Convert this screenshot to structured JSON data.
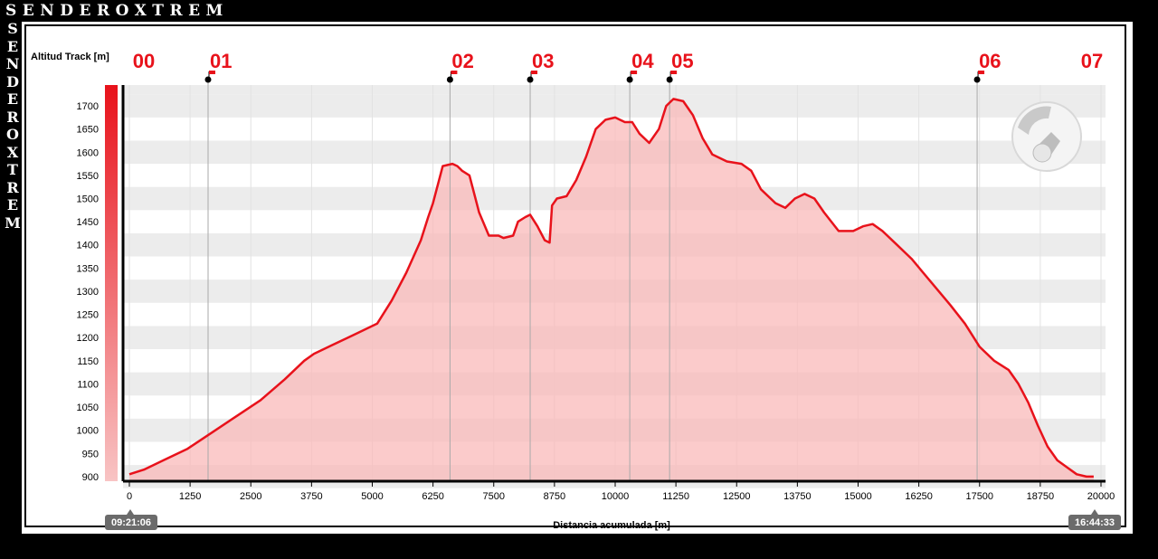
{
  "branding": {
    "top": "SENDEROXTREM",
    "side": [
      "S",
      "E",
      "N",
      "D",
      "E",
      "R",
      "O",
      "X",
      "T",
      "R",
      "E",
      "M"
    ],
    "logo_text": "SENDEROXTREM"
  },
  "chart_data": {
    "type": "area",
    "ylabel": "Altitud Track [m]",
    "xlabel": "Distancia acumulada [m]",
    "xlim": [
      0,
      20000
    ],
    "ylim": [
      890,
      1745
    ],
    "x_ticks": [
      0,
      1250,
      2500,
      3750,
      5000,
      6250,
      7500,
      8750,
      10000,
      11250,
      12500,
      13750,
      15000,
      16250,
      17500,
      18750,
      20000
    ],
    "y_ticks": [
      900,
      950,
      1000,
      1050,
      1100,
      1150,
      1200,
      1250,
      1300,
      1350,
      1400,
      1450,
      1500,
      1550,
      1600,
      1650,
      1700
    ],
    "grid": true,
    "start_time": "09:21:06",
    "end_time": "16:44:33",
    "colors": {
      "line": "#e8121b",
      "fill": "#f9b9b9",
      "band": "#ececec",
      "waypoint_label": "#e8121b"
    },
    "waypoints": [
      {
        "label": "00",
        "x": 0
      },
      {
        "label": "01",
        "x": 1620
      },
      {
        "label": "02",
        "x": 6600
      },
      {
        "label": "03",
        "x": 8250
      },
      {
        "label": "04",
        "x": 10300
      },
      {
        "label": "05",
        "x": 11120
      },
      {
        "label": "06",
        "x": 17450
      },
      {
        "label": "07",
        "x": 19850
      }
    ],
    "series": [
      {
        "x": [
          0,
          300,
          700,
          1200,
          1700,
          2200,
          2700,
          3200,
          3600,
          3800,
          4200,
          4700,
          5100,
          5400,
          5700,
          6000,
          6150,
          6250,
          6450,
          6650,
          6750,
          6850,
          7000,
          7200,
          7400,
          7600,
          7700,
          7900,
          8000,
          8150,
          8250,
          8400,
          8550,
          8650,
          8700,
          8800,
          9000,
          9200,
          9400,
          9600,
          9800,
          10000,
          10200,
          10350,
          10500,
          10700,
          10900,
          11050,
          11200,
          11400,
          11600,
          11800,
          12000,
          12300,
          12600,
          12800,
          13000,
          13300,
          13500,
          13700,
          13900,
          14100,
          14300,
          14600,
          14900,
          15100,
          15300,
          15500,
          15800,
          16100,
          16500,
          16900,
          17200,
          17500,
          17800,
          18100,
          18300,
          18500,
          18700,
          18900,
          19100,
          19300,
          19500,
          19700,
          19850
        ],
        "y": [
          905,
          915,
          935,
          960,
          995,
          1030,
          1065,
          1110,
          1150,
          1165,
          1185,
          1210,
          1230,
          1280,
          1340,
          1410,
          1460,
          1490,
          1570,
          1575,
          1570,
          1560,
          1550,
          1470,
          1420,
          1420,
          1415,
          1420,
          1450,
          1460,
          1465,
          1440,
          1410,
          1405,
          1485,
          1500,
          1505,
          1540,
          1590,
          1650,
          1670,
          1675,
          1665,
          1665,
          1640,
          1620,
          1650,
          1700,
          1715,
          1710,
          1680,
          1630,
          1595,
          1580,
          1575,
          1560,
          1520,
          1490,
          1480,
          1500,
          1510,
          1500,
          1470,
          1430,
          1430,
          1440,
          1445,
          1430,
          1400,
          1370,
          1320,
          1270,
          1230,
          1180,
          1150,
          1130,
          1100,
          1060,
          1010,
          965,
          935,
          920,
          905,
          900,
          900
        ]
      }
    ]
  }
}
